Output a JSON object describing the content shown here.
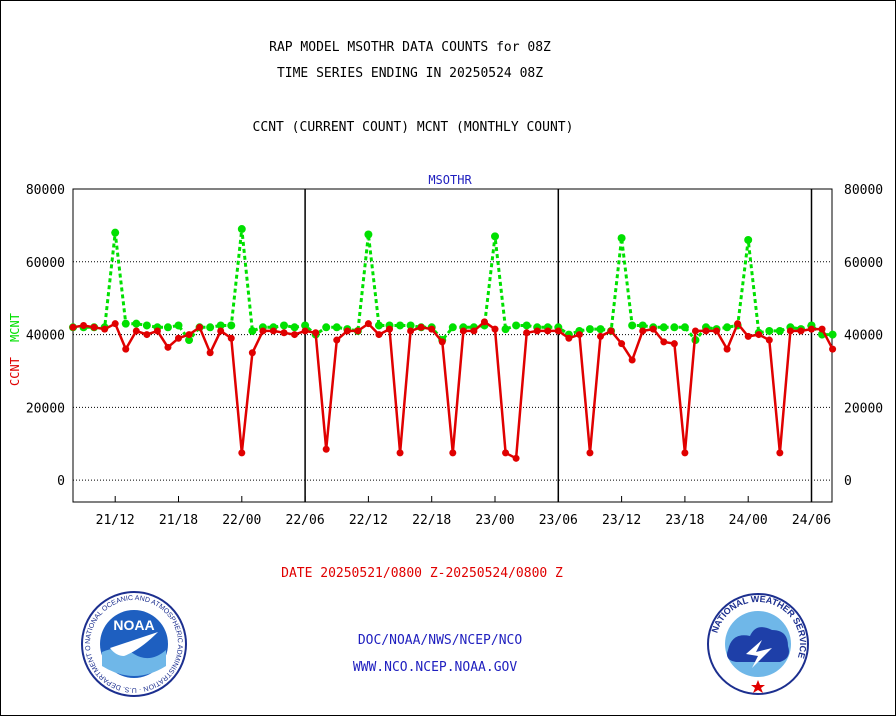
{
  "header": {
    "title_line1": "RAP MODEL MSOTHR DATA COUNTS for 08Z",
    "title_line2": "TIME SERIES ENDING IN 20250524 08Z",
    "subtitle": "CCNT (CURRENT COUNT) MCNT (MONTHLY COUNT)",
    "plot_label": "MSOTHR"
  },
  "footer": {
    "date_range": "DATE 20250521/0800 Z-20250524/0800 Z",
    "org_path": "DOC/NOAA/NWS/NCEP/NCO",
    "website": "WWW.NCO.NCEP.NOAA.GOV",
    "noaa_logo_text": "NOAA",
    "noaa_ring_text": "NATIONAL OCEANIC AND ATMOSPHERIC ADMINISTRATION · U.S. DEPARTMENT OF COMMERCE",
    "nws_ring_text": "NATIONAL WEATHER SERVICE"
  },
  "colors": {
    "ccnt": "#e00000",
    "mcnt": "#00e000",
    "label_blue": "#1f1fbf"
  },
  "chart_data": {
    "type": "line",
    "ylabel_ccnt": "CCNT",
    "ylabel_mcnt": "MCNT",
    "ylim": [
      -6000,
      80000
    ],
    "yticks": [
      0,
      20000,
      40000,
      60000,
      80000
    ],
    "ytick_labels": [
      "0",
      "20000",
      "40000",
      "60000",
      "80000"
    ],
    "xlim": [
      0,
      72
    ],
    "xticks": [
      4,
      10,
      16,
      22,
      28,
      34,
      40,
      46,
      52,
      58,
      64,
      70
    ],
    "xtick_labels": [
      "21/12",
      "21/18",
      "22/00",
      "22/06",
      "22/12",
      "22/18",
      "23/00",
      "23/06",
      "23/12",
      "23/18",
      "24/00",
      "24/06"
    ],
    "day_boundaries": [
      22,
      46,
      70
    ],
    "grid": "horizontal dotted",
    "series": [
      {
        "name": "CCNT",
        "x": [
          0,
          1,
          2,
          3,
          4,
          5,
          6,
          7,
          8,
          9,
          10,
          11,
          12,
          13,
          14,
          15,
          16,
          17,
          18,
          19,
          20,
          21,
          22,
          23,
          24,
          25,
          26,
          27,
          28,
          29,
          30,
          31,
          32,
          33,
          34,
          35,
          36,
          37,
          38,
          39,
          40,
          41,
          42,
          43,
          44,
          45,
          46,
          47,
          48,
          49,
          50,
          51,
          52,
          53,
          54,
          55,
          56,
          57,
          58,
          59,
          60,
          61,
          62,
          63,
          64,
          65,
          66,
          67,
          68,
          69,
          70,
          71,
          72
        ],
        "values": [
          42000,
          42500,
          42000,
          41500,
          43000,
          36000,
          41000,
          40000,
          41000,
          36500,
          39000,
          40000,
          42000,
          35000,
          41000,
          39000,
          7500,
          35000,
          41000,
          41000,
          40500,
          40000,
          41000,
          40500,
          8500,
          38500,
          41000,
          41000,
          43000,
          40000,
          41500,
          7500,
          41000,
          42000,
          41500,
          38000,
          7500,
          41000,
          41000,
          43500,
          41500,
          7500,
          6000,
          40500,
          41000,
          41000,
          41000,
          39000,
          40000,
          7500,
          39500,
          41000,
          37500,
          33000,
          41000,
          41500,
          38000,
          37500,
          7500,
          41000,
          41000,
          41000,
          36000,
          43000,
          39500,
          40000,
          38500,
          7500,
          41000,
          41000,
          41500,
          41500,
          36000
        ]
      },
      {
        "name": "MCNT",
        "x": [
          0,
          1,
          2,
          3,
          4,
          5,
          6,
          7,
          8,
          9,
          10,
          11,
          12,
          13,
          14,
          15,
          16,
          17,
          18,
          19,
          20,
          21,
          22,
          23,
          24,
          25,
          26,
          27,
          28,
          29,
          30,
          31,
          32,
          33,
          34,
          35,
          36,
          37,
          38,
          39,
          40,
          41,
          42,
          43,
          44,
          45,
          46,
          47,
          48,
          49,
          50,
          51,
          52,
          53,
          54,
          55,
          56,
          57,
          58,
          59,
          60,
          61,
          62,
          63,
          64,
          65,
          66,
          67,
          68,
          69,
          70,
          71,
          72
        ],
        "values": [
          42000,
          42000,
          42000,
          42000,
          68000,
          43000,
          43000,
          42500,
          42000,
          42000,
          42500,
          38500,
          42000,
          42000,
          42500,
          42500,
          69000,
          41000,
          42000,
          42000,
          42500,
          42000,
          42500,
          40000,
          42000,
          42000,
          41500,
          41000,
          67500,
          42500,
          42500,
          42500,
          42500,
          42000,
          42000,
          38500,
          42000,
          42000,
          42000,
          42500,
          67000,
          41500,
          42500,
          42500,
          42000,
          42000,
          42000,
          40000,
          41000,
          41500,
          41500,
          41000,
          66500,
          42500,
          42500,
          42000,
          42000,
          42000,
          42000,
          38500,
          42000,
          41500,
          42000,
          42500,
          66000,
          40500,
          41000,
          41000,
          42000,
          41500,
          42500,
          40000,
          40000
        ]
      }
    ]
  }
}
